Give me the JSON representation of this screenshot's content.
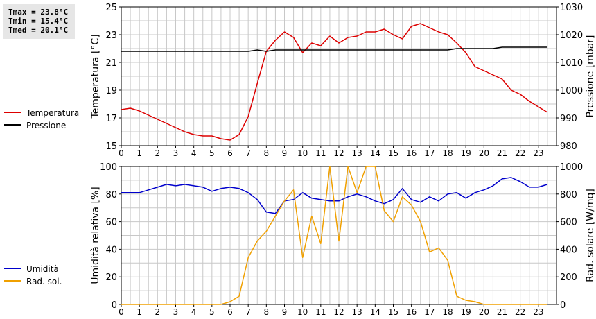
{
  "stats": {
    "tmax": "Tmax = 23.8°C",
    "tmin": "Tmin = 15.4°C",
    "tmed": "Tmed = 20.1°C"
  },
  "colors": {
    "temperatura": "#dd0000",
    "pressione": "#000000",
    "umidita": "#0000cc",
    "radiazione": "#f0a000",
    "grid": "#c8c8c8"
  },
  "chart_data": [
    {
      "type": "line",
      "title": "",
      "xlabel": "",
      "ylabel": "Temperatura [°C]",
      "y2label": "Pressione [mbar]",
      "xlim": [
        0,
        24
      ],
      "ylim": [
        15,
        25
      ],
      "y2lim": [
        980,
        1030
      ],
      "x_ticks": [
        "0",
        "1",
        "2",
        "3",
        "4",
        "5",
        "6",
        "7",
        "8",
        "9",
        "10",
        "11",
        "12",
        "13",
        "14",
        "15",
        "16",
        "17",
        "18",
        "19",
        "20",
        "21",
        "22",
        "23"
      ],
      "y_ticks": [
        "15",
        "17",
        "19",
        "21",
        "23",
        "25"
      ],
      "y2_ticks": [
        "980",
        "990",
        "1000",
        "1010",
        "1020",
        "1030"
      ],
      "legend": [
        "Temperatura",
        "Pressione"
      ],
      "series": [
        {
          "name": "Temperatura",
          "axis": "left",
          "x": [
            0,
            0.5,
            1,
            1.5,
            2,
            2.5,
            3,
            3.5,
            4,
            4.5,
            5,
            5.5,
            6,
            6.5,
            7,
            7.5,
            8,
            8.5,
            9,
            9.5,
            10,
            10.5,
            11,
            11.5,
            12,
            12.5,
            13,
            13.5,
            14,
            14.5,
            15,
            15.5,
            16,
            16.5,
            17,
            17.5,
            18,
            18.5,
            19,
            19.5,
            20,
            20.5,
            21,
            21.5,
            22,
            22.5,
            23,
            23.5
          ],
          "values": [
            17.6,
            17.7,
            17.5,
            17.2,
            16.9,
            16.6,
            16.3,
            16.0,
            15.8,
            15.7,
            15.7,
            15.5,
            15.4,
            15.8,
            17.1,
            19.5,
            21.8,
            22.6,
            23.2,
            22.8,
            21.7,
            22.4,
            22.2,
            22.9,
            22.4,
            22.8,
            22.9,
            23.2,
            23.2,
            23.4,
            23.0,
            22.7,
            23.6,
            23.8,
            23.5,
            23.2,
            23.0,
            22.4,
            21.7,
            20.7,
            20.4,
            20.1,
            19.8,
            19.0,
            18.7,
            18.2,
            17.8,
            17.4
          ]
        },
        {
          "name": "Pressione",
          "axis": "right",
          "x": [
            0,
            7,
            7.5,
            8,
            8.5,
            9,
            10,
            12,
            14,
            16,
            18,
            18.5,
            19,
            20,
            20.5,
            21,
            21.5,
            22,
            23,
            23.5
          ],
          "values": [
            1014,
            1014,
            1014.5,
            1014,
            1014.5,
            1014.5,
            1014.5,
            1014.5,
            1014.5,
            1014.5,
            1014.5,
            1015,
            1015,
            1015,
            1015,
            1015.5,
            1015.5,
            1015.5,
            1015.5,
            1015.5
          ]
        }
      ]
    },
    {
      "type": "line",
      "title": "",
      "xlabel": "",
      "ylabel": "Umidità relativa [%]",
      "y2label": "Rad. solare [W/mq]",
      "xlim": [
        0,
        24
      ],
      "ylim": [
        0,
        100
      ],
      "y2lim": [
        0,
        1000
      ],
      "x_ticks": [
        "0",
        "1",
        "2",
        "3",
        "4",
        "5",
        "6",
        "7",
        "8",
        "9",
        "10",
        "11",
        "12",
        "13",
        "14",
        "15",
        "16",
        "17",
        "18",
        "19",
        "20",
        "21",
        "22",
        "23"
      ],
      "y_ticks": [
        "0",
        "20",
        "40",
        "60",
        "80",
        "100"
      ],
      "y2_ticks": [
        "0",
        "200",
        "400",
        "600",
        "800",
        "1000"
      ],
      "legend": [
        "Umidità",
        "Rad. sol."
      ],
      "series": [
        {
          "name": "Umidità",
          "axis": "left",
          "x": [
            0,
            0.5,
            1,
            1.5,
            2,
            2.5,
            3,
            3.5,
            4,
            4.5,
            5,
            5.5,
            6,
            6.5,
            7,
            7.5,
            8,
            8.5,
            9,
            9.5,
            10,
            10.5,
            11,
            11.5,
            12,
            12.5,
            13,
            13.5,
            14,
            14.5,
            15,
            15.5,
            16,
            16.5,
            17,
            17.5,
            18,
            18.5,
            19,
            19.5,
            20,
            20.5,
            21,
            21.5,
            22,
            22.5,
            23,
            23.5
          ],
          "values": [
            81,
            81,
            81,
            83,
            85,
            87,
            86,
            87,
            86,
            85,
            82,
            84,
            85,
            84,
            81,
            76,
            67,
            66,
            75,
            76,
            81,
            77,
            76,
            75,
            75,
            78,
            80,
            78,
            75,
            73,
            76,
            84,
            76,
            74,
            78,
            75,
            80,
            81,
            77,
            81,
            83,
            86,
            91,
            92,
            89,
            85,
            85,
            87
          ]
        },
        {
          "name": "Rad. sol.",
          "axis": "right",
          "x": [
            0,
            0.5,
            1,
            1.5,
            2,
            2.5,
            3,
            3.5,
            4,
            4.5,
            5,
            5.5,
            6,
            6.5,
            7,
            7.5,
            8,
            8.5,
            9,
            9.5,
            10,
            10.5,
            11,
            11.5,
            12,
            12.5,
            13,
            13.5,
            14,
            14.5,
            15,
            15.5,
            16,
            16.5,
            17,
            17.5,
            18,
            18.5,
            19,
            19.5,
            20,
            20.5,
            21,
            21.5,
            22,
            22.5,
            23,
            23.5
          ],
          "values": [
            0,
            0,
            0,
            0,
            0,
            0,
            0,
            0,
            0,
            0,
            0,
            0,
            20,
            60,
            340,
            460,
            530,
            640,
            750,
            830,
            340,
            640,
            440,
            1000,
            460,
            1000,
            810,
            1000,
            1000,
            680,
            600,
            780,
            720,
            600,
            380,
            410,
            320,
            60,
            30,
            20,
            0,
            0,
            0,
            0,
            0,
            0,
            0,
            0
          ]
        }
      ]
    }
  ]
}
